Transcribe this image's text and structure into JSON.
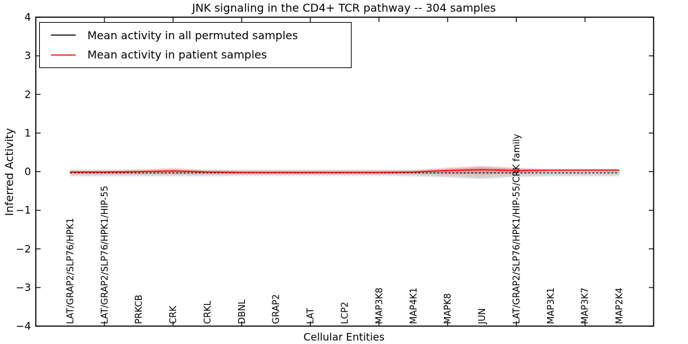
{
  "chart_data": {
    "type": "line",
    "title": "JNK signaling in the CD4+ TCR pathway -- 304 samples",
    "xlabel": "Cellular Entities",
    "ylabel": "Inferred Activity",
    "ylim": [
      -4,
      4
    ],
    "xlim": [
      -1,
      17
    ],
    "yticks": [
      4,
      3,
      2,
      1,
      0,
      -1,
      -2,
      -3,
      -4
    ],
    "ytick_labels": [
      "4",
      "3",
      "2",
      "1",
      "0",
      "−1",
      "−2",
      "−3",
      "−4"
    ],
    "xtick_positions": [
      1,
      3,
      5,
      7,
      9,
      11,
      13,
      15
    ],
    "grid": false,
    "legend_position": "upper left",
    "categories": [
      "LAT/GRAP2/SLP76/HPK1",
      "LAT/GRAP2/SLP76/HPK1/HIP-55",
      "PRKCB",
      "CRK",
      "CRKL",
      "DBNL",
      "GRAP2",
      "LAT",
      "LCP2",
      "MAP3K8",
      "MAP4K1",
      "MAPK8",
      "JUN",
      "LAT/GRAP2/SLP76/HPK1/HIP-55/CRK family",
      "MAP3K1",
      "MAP3K7",
      "MAP2K4"
    ],
    "series": [
      {
        "name": "Mean activity in all permuted samples",
        "color": "#000000",
        "style": "dashed",
        "values": [
          -0.03,
          -0.03,
          -0.03,
          -0.03,
          -0.03,
          -0.03,
          -0.03,
          -0.03,
          -0.03,
          -0.03,
          -0.03,
          -0.03,
          -0.03,
          -0.03,
          -0.03,
          -0.03,
          -0.03
        ]
      },
      {
        "name": "Mean activity in patient samples",
        "color": "#ff0000",
        "style": "solid",
        "values": [
          -0.01,
          -0.01,
          0.0,
          0.02,
          -0.01,
          -0.02,
          -0.02,
          -0.02,
          -0.02,
          -0.02,
          -0.01,
          0.03,
          0.05,
          0.03,
          0.04,
          0.04,
          0.04
        ]
      }
    ],
    "bands": [
      {
        "name": "permuted-confidence-band",
        "color": "#999999",
        "opacity": 0.45,
        "upper": [
          0.04,
          0.04,
          0.04,
          0.05,
          0.04,
          0.04,
          0.04,
          0.04,
          0.04,
          0.04,
          0.04,
          0.07,
          0.12,
          0.08,
          0.04,
          0.04,
          0.04
        ],
        "lower": [
          -0.11,
          -0.11,
          -0.11,
          -0.11,
          -0.11,
          -0.1,
          -0.1,
          -0.1,
          -0.1,
          -0.1,
          -0.11,
          -0.14,
          -0.18,
          -0.13,
          -0.11,
          -0.11,
          -0.11
        ]
      },
      {
        "name": "patient-confidence-band",
        "color": "#ff0000",
        "opacity": 0.22,
        "upper": [
          0.02,
          0.02,
          0.05,
          0.09,
          0.03,
          0.01,
          0.01,
          0.01,
          0.01,
          0.01,
          0.02,
          0.1,
          0.14,
          0.09,
          0.06,
          0.06,
          0.07
        ],
        "lower": [
          -0.04,
          -0.04,
          -0.05,
          -0.05,
          -0.04,
          -0.04,
          -0.04,
          -0.04,
          -0.04,
          -0.04,
          -0.04,
          -0.06,
          -0.07,
          -0.04,
          0.01,
          0.01,
          0.01
        ]
      }
    ]
  }
}
